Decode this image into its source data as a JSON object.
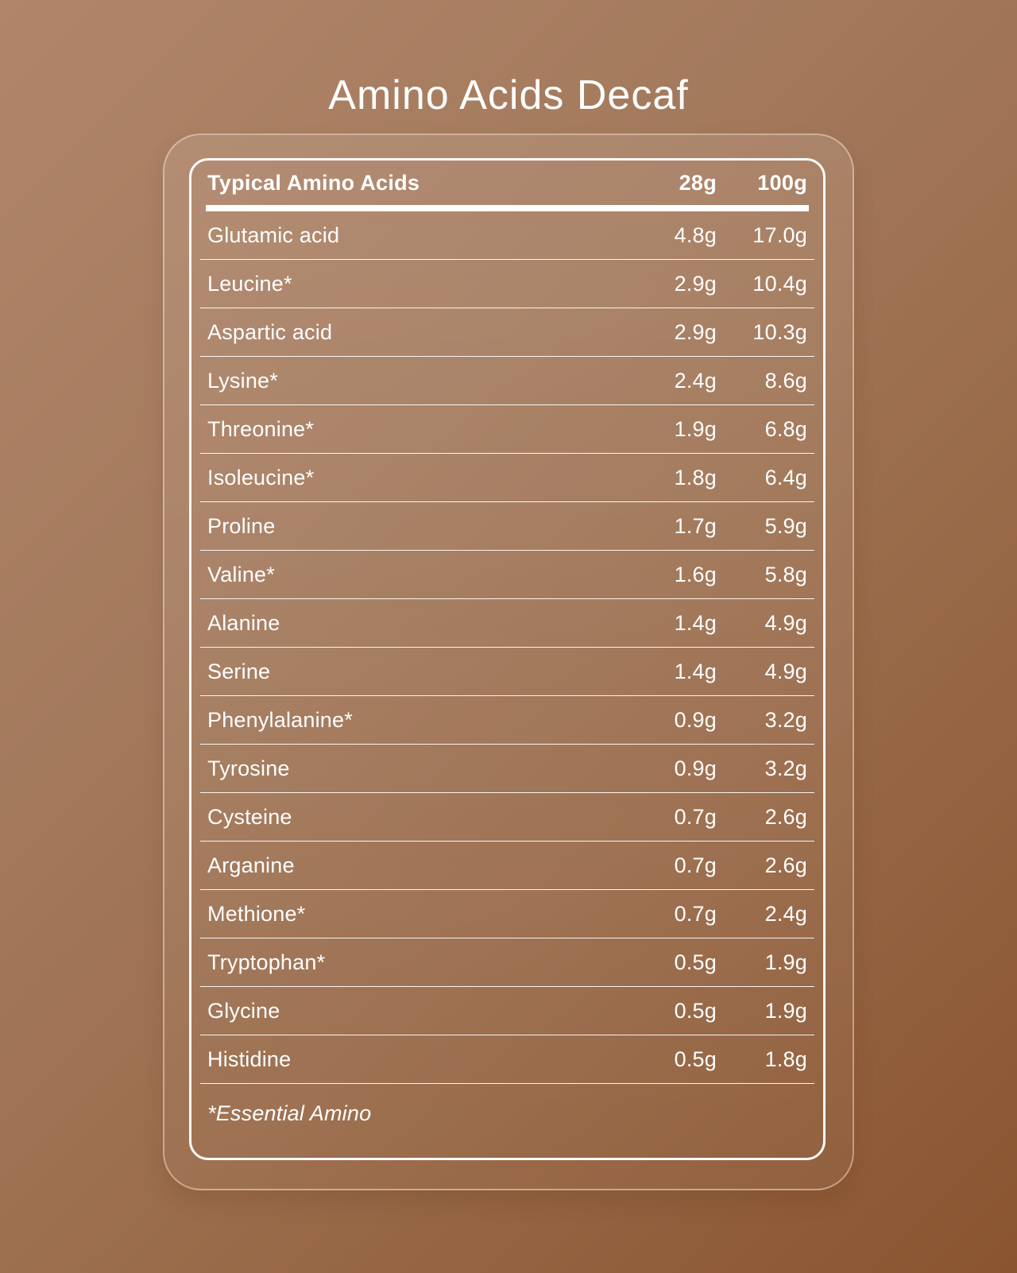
{
  "page": {
    "title": "Amino Acids Decaf"
  },
  "colors": {
    "background_top_left": "#ac8268",
    "background_bottom_right": "#8a5430",
    "text": "#ffffff",
    "card_border": "rgba(255,236,222,0.45)",
    "panel_border": "#ffffff"
  },
  "table": {
    "header": {
      "label": "Typical Amino Acids",
      "col1": "28g",
      "col2": "100g"
    },
    "rows": [
      {
        "name": "Glutamic acid",
        "g28": "4.8g",
        "g100": "17.0g"
      },
      {
        "name": "Leucine*",
        "g28": "2.9g",
        "g100": "10.4g"
      },
      {
        "name": "Aspartic acid",
        "g28": "2.9g",
        "g100": "10.3g"
      },
      {
        "name": "Lysine*",
        "g28": "2.4g",
        "g100": "8.6g"
      },
      {
        "name": "Threonine*",
        "g28": "1.9g",
        "g100": "6.8g"
      },
      {
        "name": "Isoleucine*",
        "g28": "1.8g",
        "g100": "6.4g"
      },
      {
        "name": "Proline",
        "g28": "1.7g",
        "g100": "5.9g"
      },
      {
        "name": "Valine*",
        "g28": "1.6g",
        "g100": "5.8g"
      },
      {
        "name": "Alanine",
        "g28": "1.4g",
        "g100": "4.9g"
      },
      {
        "name": "Serine",
        "g28": "1.4g",
        "g100": "4.9g"
      },
      {
        "name": "Phenylalanine*",
        "g28": "0.9g",
        "g100": "3.2g"
      },
      {
        "name": "Tyrosine",
        "g28": "0.9g",
        "g100": "3.2g"
      },
      {
        "name": "Cysteine",
        "g28": "0.7g",
        "g100": "2.6g"
      },
      {
        "name": "Arganine",
        "g28": "0.7g",
        "g100": "2.6g"
      },
      {
        "name": "Methione*",
        "g28": "0.7g",
        "g100": "2.4g"
      },
      {
        "name": "Tryptophan*",
        "g28": "0.5g",
        "g100": "1.9g"
      },
      {
        "name": "Glycine",
        "g28": "0.5g",
        "g100": "1.9g"
      },
      {
        "name": "Histidine",
        "g28": "0.5g",
        "g100": "1.8g"
      }
    ],
    "footnote": "*Essential Amino"
  }
}
